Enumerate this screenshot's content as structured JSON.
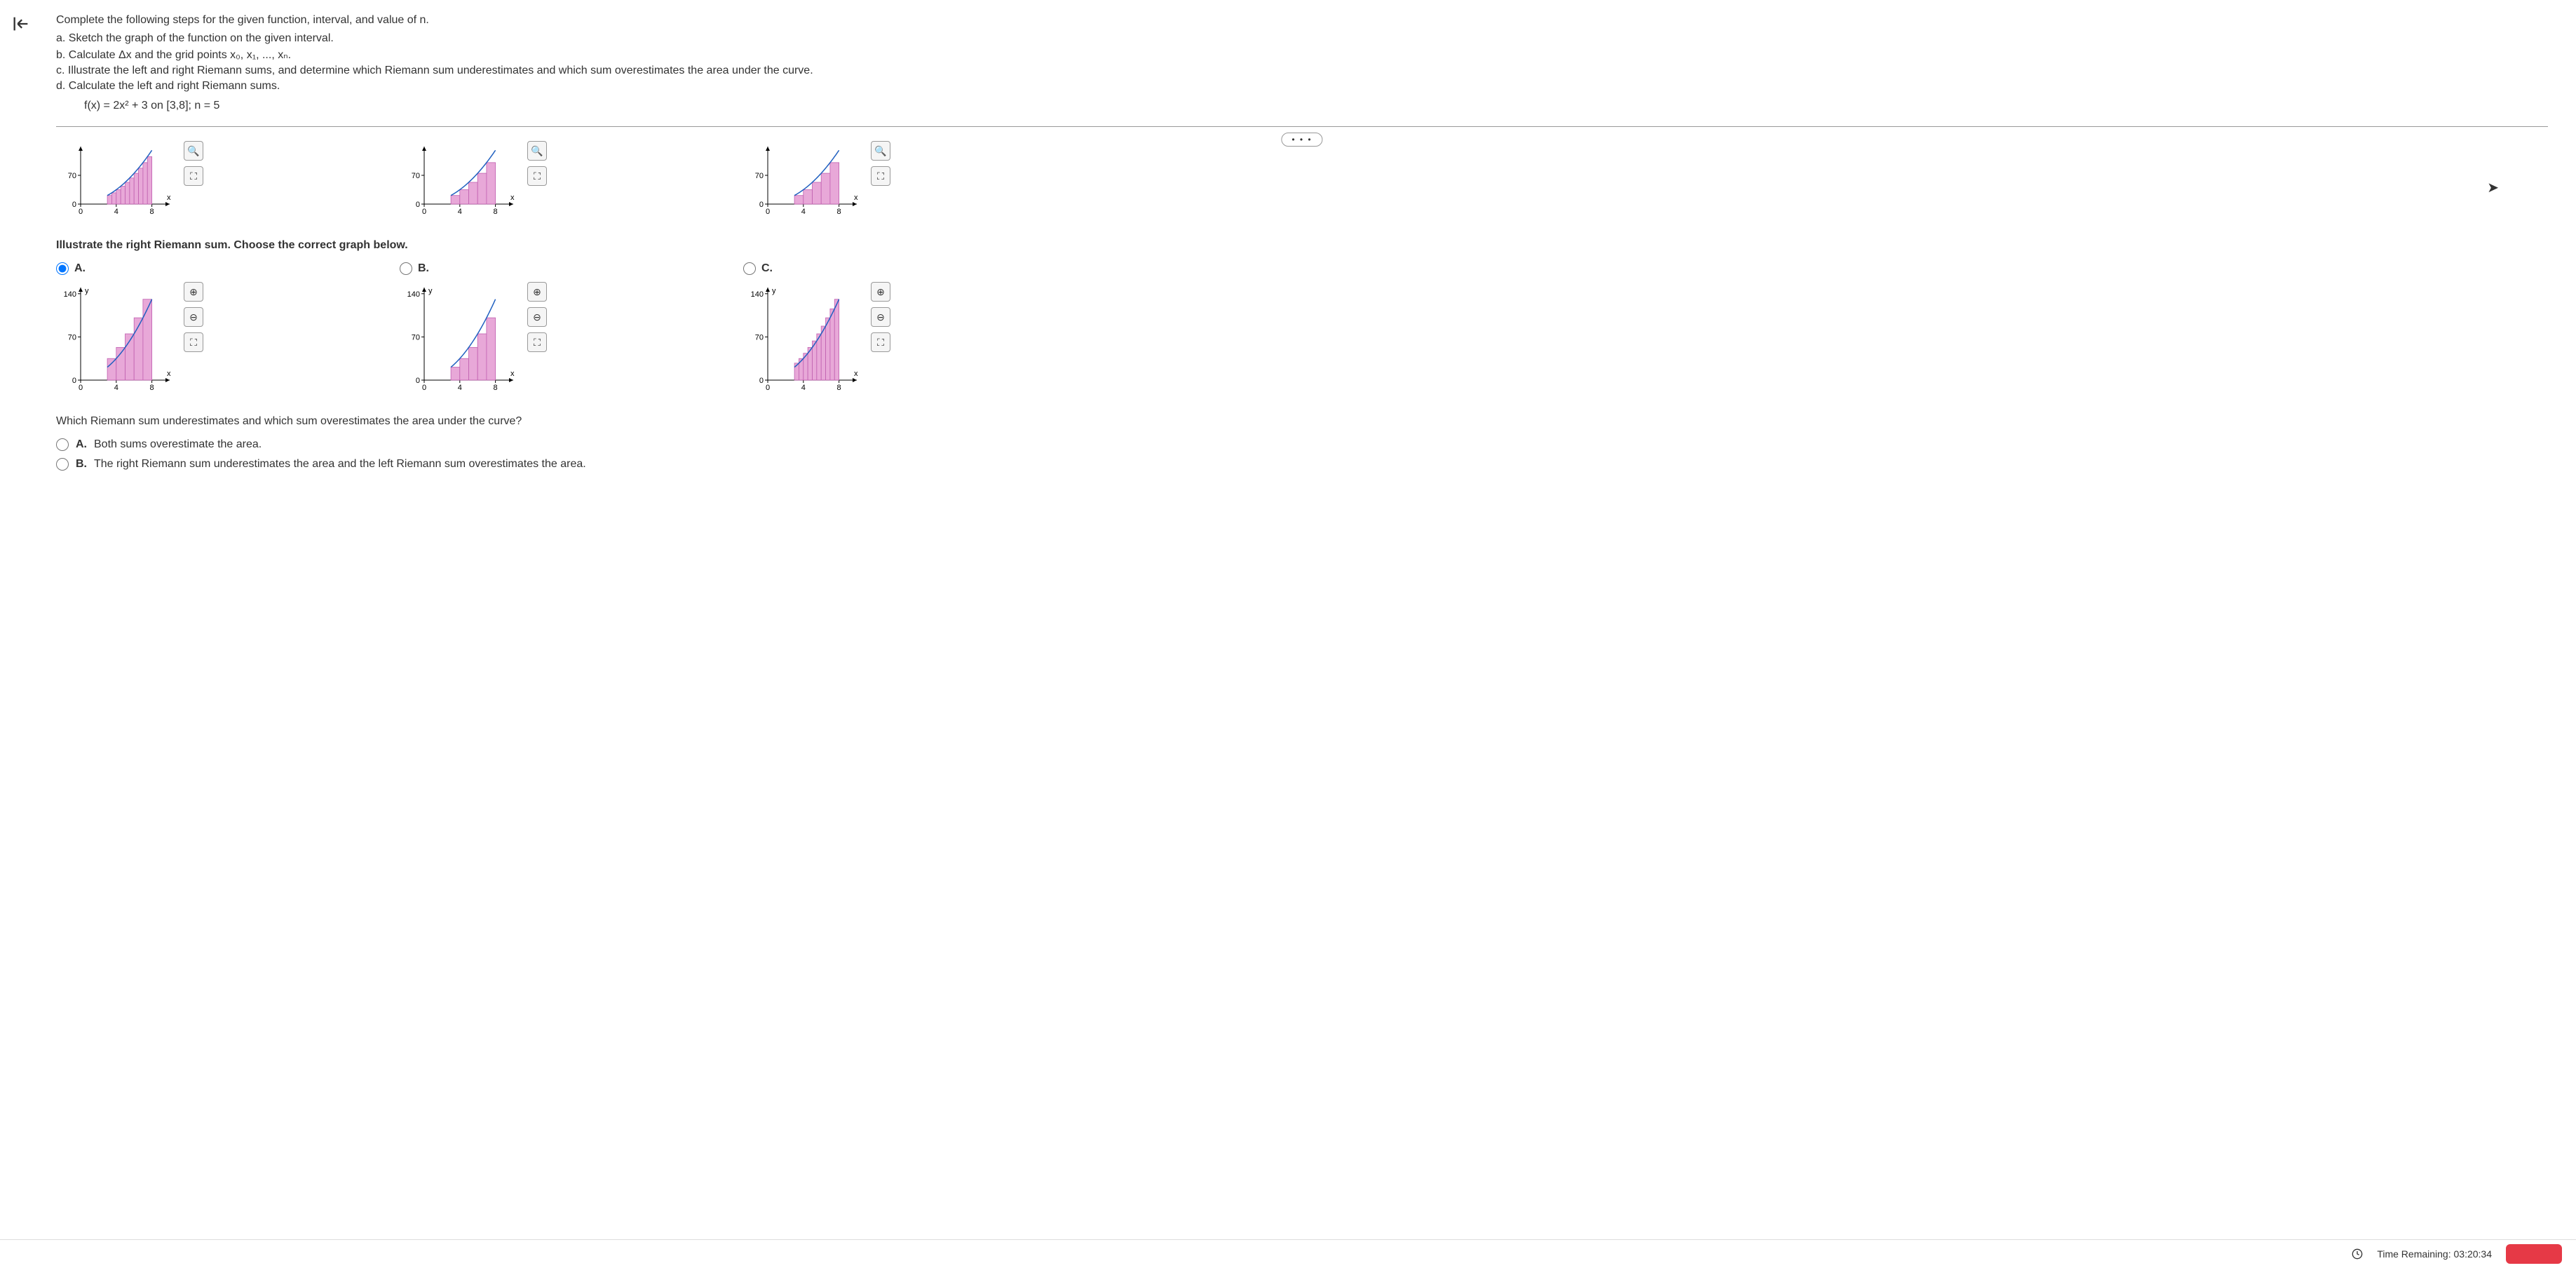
{
  "prompt": {
    "main": "Complete the following steps for the given function, interval, and value of n.",
    "a": "a. Sketch the graph of the function on the given interval.",
    "b": "b. Calculate Δx and the grid points x₀, x₁, ..., xₙ.",
    "c": "c. Illustrate the left and right Riemann sums, and determine which Riemann sum underestimates and which sum overestimates the area under the curve.",
    "d": "d. Calculate the left and right Riemann sums.",
    "formula": "f(x) = 2x² + 3 on [3,8]; n = 5"
  },
  "ellipsis": "• • •",
  "topCharts": {
    "yMax": 70,
    "xTicks": [
      0,
      4,
      8
    ],
    "yTicks": [
      0,
      70
    ],
    "chart1": {
      "type": "left-riemann-10bins"
    },
    "chart2": {
      "type": "left-riemann-5bins"
    },
    "chart3": {
      "type": "mixed-riemann"
    }
  },
  "question1": "Illustrate the right Riemann sum. Choose the correct graph below.",
  "options": {
    "A": {
      "label": "A.",
      "selected": true
    },
    "B": {
      "label": "B.",
      "selected": false
    },
    "C": {
      "label": "C.",
      "selected": false
    }
  },
  "bottomCharts": {
    "yMax": 140,
    "xTicks": [
      0,
      4,
      8
    ],
    "yTicks": [
      0,
      70,
      140
    ],
    "colors": {
      "fill": "#e8a8d8",
      "stroke": "#c060b0",
      "curve": "#2060c0"
    }
  },
  "question2": "Which Riemann sum underestimates and which sum overestimates the area under the curve?",
  "mcOptions": {
    "A": {
      "label": "A.",
      "text": "Both sums overestimate the area."
    },
    "B": {
      "label": "B.",
      "text": "The right Riemann sum underestimates the area and the left Riemann sum overestimates the area."
    }
  },
  "footer": {
    "timeLabel": "Time Remaining:",
    "timeValue": "03:20:34"
  },
  "icons": {
    "zoomIn": "⊕",
    "zoomOut": "⊖",
    "expand": "⛶",
    "zoom": "🔍"
  }
}
